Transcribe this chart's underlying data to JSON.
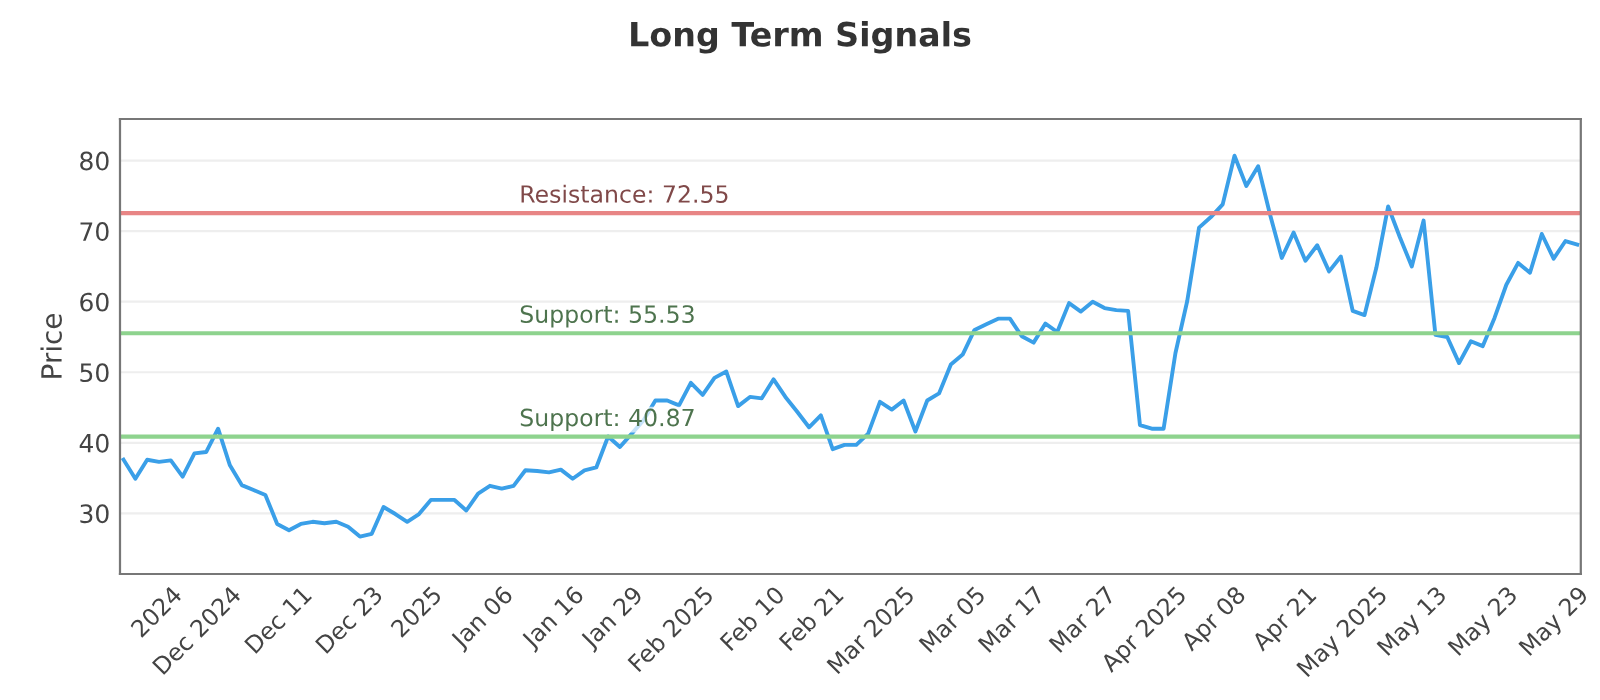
{
  "chart_data": {
    "type": "line",
    "title": "Long Term Signals",
    "ylabel": "Price",
    "categories": [
      null,
      null,
      null,
      null,
      "2024",
      null,
      null,
      null,
      null,
      "Dec 2024",
      null,
      null,
      null,
      null,
      null,
      "Dec 11",
      null,
      null,
      null,
      null,
      null,
      "Dec 23",
      null,
      null,
      null,
      null,
      "2025",
      null,
      null,
      null,
      null,
      null,
      "Jan 06",
      null,
      null,
      null,
      null,
      null,
      "Jan 16",
      null,
      null,
      null,
      null,
      "Jan 29",
      null,
      null,
      null,
      null,
      null,
      "Feb 2025",
      null,
      null,
      null,
      null,
      null,
      "Feb 10",
      null,
      null,
      null,
      null,
      "Feb 21",
      null,
      null,
      null,
      null,
      null,
      "Mar 2025",
      null,
      null,
      null,
      null,
      null,
      "Mar 05",
      null,
      null,
      null,
      null,
      "Mar 17",
      null,
      null,
      null,
      null,
      null,
      "Mar 27",
      null,
      null,
      null,
      null,
      null,
      "Apr 2025",
      null,
      null,
      null,
      null,
      "Apr 08",
      null,
      null,
      null,
      null,
      null,
      "Apr 21",
      null,
      null,
      null,
      null,
      null,
      "May 2025",
      null,
      null,
      null,
      null,
      "May 13",
      null,
      null,
      null,
      null,
      null,
      "May 23",
      null,
      null,
      null,
      null,
      null,
      "May 29"
    ],
    "series": [
      {
        "color": "#3a9fe8",
        "values": [
          37.6,
          34.9,
          37.6,
          37.3,
          37.5,
          35.2,
          38.5,
          38.7,
          42.0,
          36.8,
          34.0,
          33.3,
          32.6,
          28.5,
          27.6,
          28.5,
          28.8,
          28.6,
          28.8,
          28.1,
          26.7,
          27.1,
          30.9,
          29.9,
          28.8,
          29.9,
          31.9,
          31.9,
          31.9,
          30.4,
          32.8,
          33.9,
          33.5,
          33.9,
          36.1,
          36.0,
          35.8,
          36.2,
          34.9,
          36.1,
          36.5,
          40.9,
          39.4,
          41.3,
          43.2,
          46.0,
          46.0,
          45.3,
          48.5,
          46.8,
          49.2,
          50.1,
          45.2,
          46.5,
          46.3,
          49.0,
          46.5,
          44.4,
          42.2,
          43.9,
          39.1,
          39.7,
          39.7,
          41.3,
          45.8,
          44.7,
          46.0,
          41.6,
          46.0,
          47.0,
          51.1,
          52.5,
          56.0,
          56.8,
          57.6,
          57.6,
          55.1,
          54.2,
          56.9,
          55.7,
          59.8,
          58.6,
          60.0,
          59.1,
          58.8,
          58.7,
          42.5,
          42.0,
          42.0,
          52.7,
          60.1,
          70.5,
          72.0,
          73.8,
          80.7,
          76.4,
          79.2,
          72.4,
          66.2,
          69.8,
          65.8,
          68.0,
          64.3,
          66.4,
          58.7,
          58.1,
          64.8,
          73.5,
          69.1,
          65.0,
          71.5,
          55.3,
          55.0,
          51.3,
          54.4,
          53.7,
          57.7,
          62.4,
          65.5,
          64.1,
          69.6,
          66.1,
          68.6,
          68.1
        ]
      }
    ],
    "ylim": [
      21.4,
      85.9
    ],
    "yticks": [
      30,
      40,
      50,
      60,
      70,
      80
    ],
    "grid": "y",
    "legend": false,
    "marker": "none",
    "line_style": "solid",
    "ref_lines": [
      {
        "axis": "y",
        "value": 72.55,
        "label": "Resistance: 72.55",
        "color": "#e88585"
      },
      {
        "axis": "y",
        "value": 55.53,
        "label": "Support: 55.53",
        "color": "#8ed38e"
      },
      {
        "axis": "y",
        "value": 40.87,
        "label": "Support: 40.87",
        "color": "#8ed38e"
      }
    ]
  }
}
